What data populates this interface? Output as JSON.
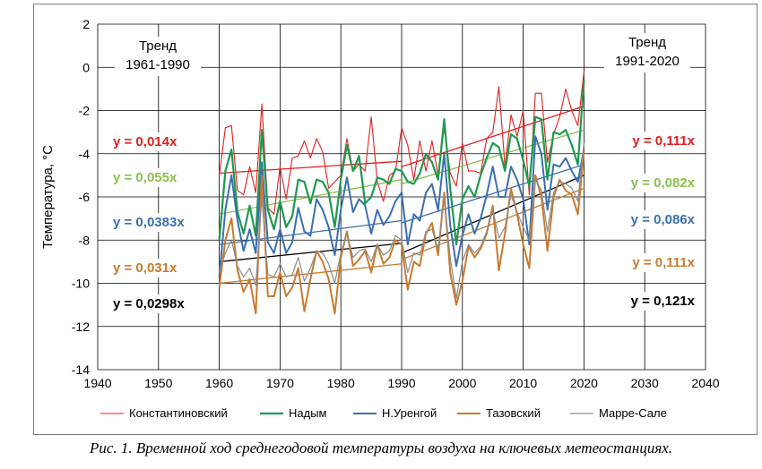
{
  "caption": "Рис. 1. Временной ход среднегодовой температуры воздуха на ключевых метеостанциях.",
  "chart_data": {
    "type": "line",
    "ylabel": "Температура, °C",
    "xlabel": "",
    "xlim": [
      1940,
      2040
    ],
    "ylim": [
      -14,
      2
    ],
    "x_ticks": [
      "1940",
      "1950",
      "1960",
      "1970",
      "1980",
      "1990",
      "2000",
      "2010",
      "2020",
      "2030",
      "2040"
    ],
    "y_ticks": [
      "2",
      "0",
      "-2",
      "-4",
      "-6",
      "-8",
      "-10",
      "-12",
      "-14"
    ],
    "grid": true,
    "legend_position": "bottom",
    "trend_headers": {
      "left": [
        "Тренд",
        "1961-1990"
      ],
      "right": [
        "Тренд",
        "1991-2020"
      ]
    },
    "series": [
      {
        "name": "Константиновский",
        "color": "#e0201f",
        "x": [
          1960,
          1961,
          1962,
          1963,
          1964,
          1965,
          1966,
          1967,
          1968,
          1969,
          1970,
          1971,
          1972,
          1973,
          1974,
          1975,
          1976,
          1977,
          1978,
          1979,
          1980,
          1981,
          1982,
          1983,
          1984,
          1985,
          1986,
          1987,
          1988,
          1989,
          1990,
          1991,
          1992,
          1993,
          1994,
          1995,
          1996,
          1997,
          1998,
          1999,
          2000,
          2001,
          2002,
          2003,
          2004,
          2005,
          2006,
          2007,
          2008,
          2009,
          2010,
          2011,
          2012,
          2013,
          2014,
          2015,
          2016,
          2017,
          2018,
          2019,
          2020
        ],
        "y": [
          -5.0,
          -2.8,
          -2.7,
          -5.7,
          -5.9,
          -4.6,
          -5.8,
          -1.7,
          -6.5,
          -6.8,
          -4.6,
          -6.1,
          -4.2,
          -4.1,
          -3.4,
          -4.2,
          -3.3,
          -3.9,
          -5.6,
          -5.3,
          -5.0,
          -3.3,
          -4.8,
          -4.5,
          -4.8,
          -2.3,
          -5.3,
          -6.2,
          -5.0,
          -4.8,
          -2.8,
          -3.6,
          -5.2,
          -3.4,
          -4.8,
          -3.4,
          -5.0,
          -2.8,
          -4.9,
          -5.5,
          -3.5,
          -4.8,
          -4.8,
          -4.9,
          -3.3,
          -3.0,
          -0.9,
          -4.6,
          -2.2,
          -3.2,
          -2.0,
          -5.9,
          -1.2,
          -1.2,
          -4.4,
          -3.1,
          -2.3,
          -1.0,
          -2.0,
          -2.7,
          -0.2
        ]
      },
      {
        "name": "Надым",
        "color": "#1e9a50",
        "x": [
          1960,
          1961,
          1962,
          1963,
          1964,
          1965,
          1966,
          1967,
          1968,
          1969,
          1970,
          1971,
          1972,
          1973,
          1974,
          1975,
          1976,
          1977,
          1978,
          1979,
          1980,
          1981,
          1982,
          1983,
          1984,
          1985,
          1986,
          1987,
          1988,
          1989,
          1990,
          1991,
          1992,
          1993,
          1994,
          1995,
          1996,
          1997,
          1998,
          1999,
          2000,
          2001,
          2002,
          2003,
          2004,
          2005,
          2006,
          2007,
          2008,
          2009,
          2010,
          2011,
          2012,
          2013,
          2014,
          2015,
          2016,
          2017,
          2018,
          2019,
          2020
        ],
        "y": [
          -8.0,
          -4.8,
          -3.8,
          -6.7,
          -7.7,
          -6.4,
          -7.8,
          -2.9,
          -6.6,
          -7.5,
          -6.2,
          -7.4,
          -6.9,
          -5.2,
          -5.3,
          -6.3,
          -5.2,
          -5.3,
          -5.8,
          -7.4,
          -5.2,
          -3.6,
          -4.8,
          -4.1,
          -6.3,
          -6.0,
          -5.1,
          -5.2,
          -5.4,
          -4.7,
          -4.8,
          -5.3,
          -5.4,
          -4.9,
          -4.0,
          -4.4,
          -5.2,
          -2.4,
          -5.6,
          -8.2,
          -6.1,
          -5.5,
          -6.0,
          -5.0,
          -4.2,
          -3.5,
          -3.7,
          -4.8,
          -3.1,
          -3.3,
          -4.3,
          -5.5,
          -2.3,
          -2.4,
          -5.2,
          -3.0,
          -3.1,
          -2.9,
          -3.6,
          -4.5,
          -0.6
        ]
      },
      {
        "name": "Н.Уренгой",
        "color": "#3a6fb0",
        "x": [
          1960,
          1961,
          1962,
          1963,
          1964,
          1965,
          1966,
          1967,
          1968,
          1969,
          1970,
          1971,
          1972,
          1973,
          1974,
          1975,
          1976,
          1977,
          1978,
          1979,
          1980,
          1981,
          1982,
          1983,
          1984,
          1985,
          1986,
          1987,
          1988,
          1989,
          1990,
          1991,
          1992,
          1993,
          1994,
          1995,
          1996,
          1997,
          1998,
          1999,
          2000,
          2001,
          2002,
          2003,
          2004,
          2005,
          2006,
          2007,
          2008,
          2009,
          2010,
          2011,
          2012,
          2013,
          2014,
          2015,
          2016,
          2017,
          2018,
          2019,
          2020
        ],
        "y": [
          -9.7,
          -6.6,
          -5.0,
          -7.1,
          -8.5,
          -7.5,
          -8.6,
          -4.4,
          -8.1,
          -8.6,
          -7.5,
          -8.6,
          -8.1,
          -6.5,
          -7.6,
          -7.8,
          -6.1,
          -6.6,
          -7.4,
          -8.7,
          -6.6,
          -5.1,
          -6.7,
          -6.1,
          -6.4,
          -7.7,
          -6.6,
          -7.3,
          -6.9,
          -6.2,
          -5.8,
          -8.2,
          -6.8,
          -7.1,
          -5.8,
          -5.4,
          -6.6,
          -4.0,
          -7.3,
          -9.2,
          -7.8,
          -6.8,
          -7.7,
          -7.0,
          -5.9,
          -4.6,
          -6.0,
          -6.0,
          -4.6,
          -5.2,
          -6.1,
          -8.2,
          -3.2,
          -4.0,
          -6.6,
          -4.5,
          -4.6,
          -4.2,
          -4.8,
          -5.3,
          -3.8
        ]
      },
      {
        "name": "Тазовский",
        "color": "#c97a2e",
        "x": [
          1960,
          1961,
          1962,
          1963,
          1964,
          1965,
          1966,
          1967,
          1968,
          1969,
          1970,
          1971,
          1972,
          1973,
          1974,
          1975,
          1976,
          1977,
          1978,
          1979,
          1980,
          1981,
          1982,
          1983,
          1984,
          1985,
          1986,
          1987,
          1988,
          1989,
          1990,
          1991,
          1992,
          1993,
          1994,
          1995,
          1996,
          1997,
          1998,
          1999,
          2000,
          2001,
          2002,
          2003,
          2004,
          2005,
          2006,
          2007,
          2008,
          2009,
          2010,
          2011,
          2012,
          2013,
          2014,
          2015,
          2016,
          2017,
          2018,
          2019,
          2020
        ],
        "y": [
          -10.2,
          -8.0,
          -7.0,
          -9.4,
          -10.4,
          -9.8,
          -11.4,
          -5.0,
          -10.6,
          -10.6,
          -9.5,
          -10.6,
          -10.2,
          -9.3,
          -11.3,
          -9.8,
          -8.5,
          -9.0,
          -9.8,
          -11.4,
          -8.8,
          -7.6,
          -9.2,
          -8.9,
          -8.5,
          -9.5,
          -8.2,
          -9.1,
          -8.8,
          -8.0,
          -8.2,
          -10.3,
          -9.0,
          -9.2,
          -7.7,
          -7.2,
          -8.7,
          -5.8,
          -9.5,
          -11.0,
          -9.9,
          -8.3,
          -8.8,
          -8.4,
          -7.7,
          -6.4,
          -9.4,
          -7.7,
          -5.6,
          -6.8,
          -8.2,
          -9.3,
          -5.0,
          -6.0,
          -8.5,
          -6.0,
          -5.2,
          -5.7,
          -5.9,
          -6.8,
          -3.9
        ]
      },
      {
        "name": "Марре-Сале",
        "color": "#8c8c8c",
        "x": [
          1960,
          1961,
          1962,
          1963,
          1964,
          1965,
          1966,
          1967,
          1968,
          1969,
          1970,
          1971,
          1972,
          1973,
          1974,
          1975,
          1976,
          1977,
          1978,
          1979,
          1980,
          1981,
          1982,
          1983,
          1984,
          1985,
          1986,
          1987,
          1988,
          1989,
          1990,
          1991,
          1992,
          1993,
          1994,
          1995,
          1996,
          1997,
          1998,
          1999,
          2000,
          2001,
          2002,
          2003,
          2004,
          2005,
          2006,
          2007,
          2008,
          2009,
          2010,
          2011,
          2012,
          2013,
          2014,
          2015,
          2016,
          2017,
          2018,
          2019,
          2020
        ],
        "y": [
          -9.5,
          -8.6,
          -8.0,
          -9.2,
          -9.7,
          -9.3,
          -10.1,
          -6.0,
          -9.6,
          -9.7,
          -9.1,
          -9.7,
          -9.6,
          -8.8,
          -9.9,
          -9.3,
          -8.5,
          -8.6,
          -9.1,
          -10.0,
          -8.6,
          -7.7,
          -8.8,
          -8.5,
          -8.4,
          -9.0,
          -8.2,
          -8.7,
          -8.5,
          -7.8,
          -8.0,
          -9.5,
          -8.6,
          -8.7,
          -7.6,
          -7.5,
          -8.4,
          -6.1,
          -8.8,
          -10.7,
          -9.0,
          -8.2,
          -8.6,
          -8.3,
          -7.6,
          -6.6,
          -7.9,
          -7.4,
          -5.9,
          -6.7,
          -7.4,
          -8.0,
          -5.2,
          -5.7,
          -7.6,
          -5.8,
          -5.3,
          -5.4,
          -5.6,
          -6.2,
          -3.5
        ]
      }
    ],
    "trends": [
      {
        "series": "Константиновский",
        "period": "1961-1990",
        "x": [
          1960,
          1990
        ],
        "y": [
          -4.9,
          -4.35
        ],
        "label": "y = 0,014x",
        "color": "#e0201f"
      },
      {
        "series": "Надым",
        "period": "1961-1990",
        "x": [
          1960,
          1990
        ],
        "y": [
          -6.8,
          -5.2
        ],
        "label": "y = 0,055x",
        "color": "#8bbf4e"
      },
      {
        "series": "Н.Уренгой",
        "period": "1961-1990",
        "x": [
          1960,
          1990
        ],
        "y": [
          -8.2,
          -7.1
        ],
        "label": "y = 0,0383x",
        "color": "#3a6fb0"
      },
      {
        "series": "Тазовский",
        "period": "1961-1990",
        "x": [
          1960,
          1990
        ],
        "y": [
          -10.0,
          -9.1
        ],
        "label": "y = 0,031x",
        "color": "#c97a2e"
      },
      {
        "series": "Марре-Сале",
        "period": "1961-1990",
        "x": [
          1960,
          1990
        ],
        "y": [
          -9.0,
          -8.15
        ],
        "label": "y = 0,0298x",
        "color": "#000000"
      },
      {
        "series": "Константиновский",
        "period": "1991-2020",
        "x": [
          1990,
          2020
        ],
        "y": [
          -4.6,
          -1.8
        ],
        "label": "y = 0,111x",
        "color": "#e0201f"
      },
      {
        "series": "Надым",
        "period": "1991-2020",
        "x": [
          1990,
          2020
        ],
        "y": [
          -5.4,
          -2.9
        ],
        "label": "y = 0,082x",
        "color": "#8bbf4e"
      },
      {
        "series": "Н.Уренгой",
        "period": "1991-2020",
        "x": [
          1990,
          2020
        ],
        "y": [
          -7.2,
          -4.5
        ],
        "label": "y = 0,086x",
        "color": "#3a6fb0"
      },
      {
        "series": "Тазовский",
        "period": "1991-2020",
        "x": [
          1990,
          2020
        ],
        "y": [
          -8.9,
          -5.6
        ],
        "label": "y = 0,111x",
        "color": "#c97a2e"
      },
      {
        "series": "Марре-Сале",
        "period": "1991-2020",
        "x": [
          1990,
          2020
        ],
        "y": [
          -8.6,
          -5.0
        ],
        "label": "y = 0,121x",
        "color": "#000000"
      }
    ]
  }
}
